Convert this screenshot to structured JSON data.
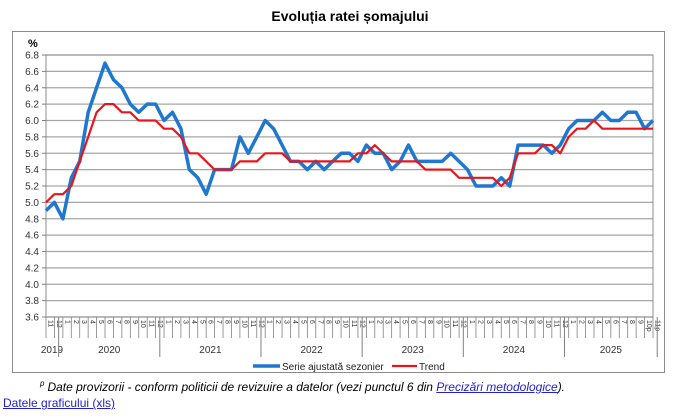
{
  "chart_data": {
    "type": "line",
    "title": "Evoluția ratei șomajului",
    "ylabel": "%",
    "xlabel": "",
    "ylim": [
      3.6,
      6.8
    ],
    "yticks": [
      "6.8",
      "6.6",
      "6.4",
      "6.2",
      "6.0",
      "5.8",
      "5.6",
      "5.4",
      "5.2",
      "5.0",
      "4.8",
      "4.6",
      "4.4",
      "4.2",
      "4.0",
      "3.8",
      "3.6"
    ],
    "grid": true,
    "legend_position": "bottom-center",
    "month_labels": [
      "11",
      "12",
      "1",
      "2",
      "3",
      "4",
      "5",
      "6",
      "7",
      "8",
      "9",
      "10",
      "11",
      "12",
      "1",
      "2",
      "3",
      "4",
      "5",
      "6",
      "7",
      "8",
      "9",
      "10",
      "11",
      "12",
      "1",
      "2",
      "3",
      "4",
      "5",
      "6",
      "7",
      "8",
      "9",
      "10",
      "11",
      "12",
      "1",
      "2",
      "3",
      "4",
      "5",
      "6",
      "7",
      "8",
      "9",
      "10",
      "11",
      "12",
      "1",
      "2",
      "3",
      "4",
      "5",
      "6",
      "7",
      "8",
      "9",
      "10",
      "11",
      "12",
      "1",
      "2",
      "3",
      "4",
      "5",
      "6",
      "7",
      "8",
      "9",
      "10p",
      "11p"
    ],
    "years": [
      {
        "label": "2019",
        "start": 0,
        "count": 2
      },
      {
        "label": "2020",
        "start": 2,
        "count": 12
      },
      {
        "label": "2021",
        "start": 14,
        "count": 12
      },
      {
        "label": "2022",
        "start": 26,
        "count": 12
      },
      {
        "label": "2023",
        "start": 38,
        "count": 12
      },
      {
        "label": "2024",
        "start": 50,
        "count": 12
      },
      {
        "label": "2025",
        "start": 62,
        "count": 11
      }
    ],
    "series": [
      {
        "name": "Serie ajustată sezonier",
        "color": "#1f77d0",
        "values": [
          4.9,
          5.0,
          4.8,
          5.3,
          5.5,
          6.1,
          6.4,
          6.7,
          6.5,
          6.4,
          6.2,
          6.1,
          6.2,
          6.2,
          6.0,
          6.1,
          5.9,
          5.4,
          5.3,
          5.1,
          5.4,
          5.4,
          5.4,
          5.8,
          5.6,
          5.8,
          6.0,
          5.9,
          5.7,
          5.5,
          5.5,
          5.4,
          5.5,
          5.4,
          5.5,
          5.6,
          5.6,
          5.5,
          5.7,
          5.6,
          5.6,
          5.4,
          5.5,
          5.7,
          5.5,
          5.5,
          5.5,
          5.5,
          5.6,
          5.5,
          5.4,
          5.2,
          5.2,
          5.2,
          5.3,
          5.2,
          5.7,
          5.7,
          5.7,
          5.7,
          5.6,
          5.7,
          5.9,
          6.0,
          6.0,
          6.0,
          6.1,
          6.0,
          6.0,
          6.1,
          6.1,
          5.9,
          6.0
        ]
      },
      {
        "name": "Trend",
        "color": "#e8161b",
        "values": [
          5.0,
          5.1,
          5.1,
          5.2,
          5.5,
          5.8,
          6.1,
          6.2,
          6.2,
          6.1,
          6.1,
          6.0,
          6.0,
          6.0,
          5.9,
          5.9,
          5.8,
          5.6,
          5.6,
          5.5,
          5.4,
          5.4,
          5.4,
          5.5,
          5.5,
          5.5,
          5.6,
          5.6,
          5.6,
          5.5,
          5.5,
          5.5,
          5.5,
          5.5,
          5.5,
          5.5,
          5.5,
          5.6,
          5.6,
          5.7,
          5.6,
          5.5,
          5.5,
          5.5,
          5.5,
          5.4,
          5.4,
          5.4,
          5.4,
          5.3,
          5.3,
          5.3,
          5.3,
          5.3,
          5.2,
          5.3,
          5.6,
          5.6,
          5.6,
          5.7,
          5.7,
          5.6,
          5.8,
          5.9,
          5.9,
          6.0,
          5.9,
          5.9,
          5.9,
          5.9,
          5.9,
          5.9,
          5.9
        ]
      }
    ]
  },
  "footnote": {
    "marker": "p",
    "text": "Date provizorii - conform politicii de revizuire a datelor (vezi punctul 6 din ",
    "link_label": "Precizări metodologice",
    "suffix": ")."
  },
  "data_link_label": "Datele graficului (xls)"
}
